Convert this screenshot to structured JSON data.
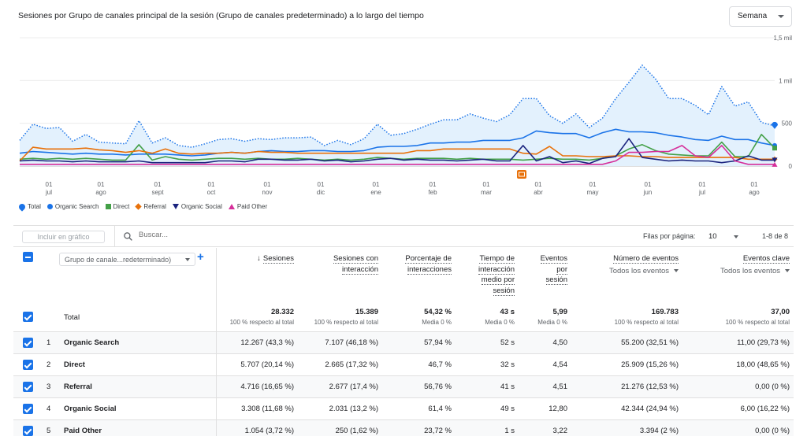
{
  "chart": {
    "title": "Sesiones por Grupo de canales principal de la sesión (Grupo de canales predeterminado) a lo largo del tiempo",
    "period_select": "Semana",
    "annotation_icon": "calendar-note-icon"
  },
  "chart_data": {
    "type": "line",
    "y_ticks": [
      "1,5 mil",
      "1 mil",
      "500",
      "0"
    ],
    "ylim": [
      0,
      1500
    ],
    "x_ticks": [
      {
        "day": "01",
        "month": "jul"
      },
      {
        "day": "01",
        "month": "ago"
      },
      {
        "day": "01",
        "month": "sept"
      },
      {
        "day": "01",
        "month": "oct"
      },
      {
        "day": "01",
        "month": "nov"
      },
      {
        "day": "01",
        "month": "dic"
      },
      {
        "day": "01",
        "month": "ene"
      },
      {
        "day": "01",
        "month": "feb"
      },
      {
        "day": "01",
        "month": "mar"
      },
      {
        "day": "01",
        "month": "abr"
      },
      {
        "day": "01",
        "month": "may"
      },
      {
        "day": "01",
        "month": "jun"
      },
      {
        "day": "01",
        "month": "jul"
      },
      {
        "day": "01",
        "month": "ago"
      }
    ],
    "series": [
      {
        "name": "Total",
        "color": "#1a73e8",
        "style": "dotted",
        "fill": true,
        "values": [
          300,
          490,
          440,
          450,
          290,
          370,
          280,
          270,
          260,
          530,
          270,
          330,
          240,
          220,
          260,
          310,
          320,
          290,
          320,
          310,
          330,
          330,
          340,
          240,
          300,
          250,
          320,
          490,
          360,
          380,
          430,
          490,
          540,
          540,
          610,
          560,
          520,
          600,
          790,
          790,
          590,
          500,
          610,
          450,
          560,
          790,
          980,
          1180,
          1020,
          790,
          790,
          710,
          600,
          930,
          700,
          750,
          510,
          470
        ]
      },
      {
        "name": "Organic Search",
        "color": "#1a73e8",
        "style": "solid",
        "values": [
          150,
          170,
          160,
          150,
          140,
          150,
          140,
          140,
          130,
          140,
          140,
          140,
          130,
          120,
          130,
          150,
          160,
          150,
          170,
          180,
          170,
          170,
          180,
          180,
          170,
          170,
          180,
          220,
          230,
          230,
          240,
          270,
          270,
          280,
          280,
          300,
          300,
          300,
          330,
          410,
          390,
          380,
          380,
          330,
          390,
          430,
          400,
          400,
          390,
          360,
          340,
          310,
          300,
          350,
          310,
          310,
          270,
          240
        ]
      },
      {
        "name": "Direct",
        "color": "#43a047",
        "style": "solid",
        "values": [
          80,
          90,
          80,
          90,
          80,
          90,
          80,
          70,
          70,
          250,
          70,
          110,
          80,
          70,
          80,
          90,
          90,
          80,
          90,
          80,
          80,
          90,
          80,
          70,
          80,
          70,
          80,
          100,
          90,
          80,
          90,
          90,
          90,
          80,
          90,
          80,
          80,
          80,
          70,
          80,
          90,
          80,
          80,
          70,
          90,
          120,
          200,
          250,
          180,
          140,
          130,
          120,
          120,
          280,
          110,
          110,
          370,
          210
        ]
      },
      {
        "name": "Referral",
        "color": "#e8710a",
        "style": "solid",
        "values": [
          60,
          220,
          200,
          200,
          200,
          210,
          190,
          180,
          160,
          180,
          150,
          200,
          150,
          140,
          150,
          150,
          160,
          150,
          170,
          160,
          160,
          150,
          150,
          150,
          150,
          150,
          150,
          150,
          150,
          150,
          180,
          180,
          200,
          200,
          200,
          200,
          200,
          200,
          150,
          140,
          230,
          120,
          120,
          110,
          110,
          120,
          120,
          110,
          110,
          100,
          100,
          100,
          100,
          100,
          100,
          80,
          80,
          80
        ]
      },
      {
        "name": "Organic Social",
        "color": "#1a237e",
        "style": "solid",
        "values": [
          60,
          70,
          60,
          60,
          50,
          60,
          50,
          50,
          50,
          60,
          40,
          40,
          40,
          40,
          40,
          60,
          60,
          50,
          80,
          80,
          70,
          70,
          80,
          60,
          70,
          50,
          60,
          80,
          90,
          70,
          80,
          70,
          70,
          60,
          70,
          80,
          60,
          60,
          240,
          60,
          110,
          40,
          60,
          30,
          90,
          110,
          320,
          100,
          80,
          60,
          70,
          60,
          60,
          40,
          60,
          120,
          70,
          70
        ]
      },
      {
        "name": "Paid Other",
        "color": "#d62f9a",
        "style": "solid",
        "values": [
          20,
          20,
          20,
          20,
          20,
          20,
          20,
          20,
          20,
          20,
          20,
          20,
          20,
          20,
          20,
          20,
          20,
          20,
          20,
          20,
          20,
          20,
          20,
          20,
          20,
          20,
          20,
          20,
          20,
          20,
          20,
          20,
          20,
          20,
          20,
          20,
          20,
          20,
          20,
          20,
          20,
          20,
          20,
          20,
          20,
          60,
          160,
          160,
          170,
          170,
          240,
          120,
          100,
          240,
          60,
          20,
          20,
          20
        ]
      }
    ]
  },
  "legend": [
    {
      "label": "Total",
      "color": "#1a73e8",
      "symbol": "pin"
    },
    {
      "label": "Organic Search",
      "color": "#1a73e8",
      "symbol": "dot"
    },
    {
      "label": "Direct",
      "color": "#43a047",
      "symbol": "square"
    },
    {
      "label": "Referral",
      "color": "#e8710a",
      "symbol": "diamond"
    },
    {
      "label": "Organic Social",
      "color": "#1a237e",
      "symbol": "triangle-down"
    },
    {
      "label": "Paid Other",
      "color": "#d62f9a",
      "symbol": "triangle-up"
    }
  ],
  "toolbar": {
    "include_label": "Incluir en gráfico",
    "search_placeholder": "Buscar...",
    "rows_label": "Filas por página:",
    "rows_value": "10",
    "pagination": "1-8 de 8"
  },
  "table": {
    "dimension_select": "Grupo de canale...redeterminado)",
    "columns": [
      {
        "lines": [
          "Sesiones"
        ],
        "sorted": true
      },
      {
        "lines": [
          "Sesiones con",
          "interacción"
        ]
      },
      {
        "lines": [
          "Porcentaje de",
          "interacciones"
        ]
      },
      {
        "lines": [
          "Tiempo de",
          "interacción",
          "medio por",
          "sesión"
        ]
      },
      {
        "lines": [
          "Eventos",
          "por",
          "sesión"
        ]
      },
      {
        "lines": [
          "Número de eventos"
        ],
        "sub": "Todos los eventos"
      },
      {
        "lines": [
          "Eventos clave"
        ],
        "sub": "Todos los eventos"
      }
    ],
    "total": {
      "label": "Total",
      "values": [
        "28.332",
        "15.389",
        "54,32 %",
        "43 s",
        "5,99",
        "169.783",
        "37,00"
      ],
      "subs": [
        "100 % respecto al total",
        "100 % respecto al total",
        "Media 0 %",
        "Media 0 %",
        "Media 0 %",
        "100 % respecto al total",
        "100 % respecto al total"
      ]
    },
    "rows": [
      {
        "index": "1",
        "name": "Organic Search",
        "values": [
          "12.267 (43,3 %)",
          "7.107 (46,18 %)",
          "57,94 %",
          "52 s",
          "4,50",
          "55.200 (32,51 %)",
          "11,00 (29,73 %)"
        ]
      },
      {
        "index": "2",
        "name": "Direct",
        "values": [
          "5.707 (20,14 %)",
          "2.665 (17,32 %)",
          "46,7 %",
          "32 s",
          "4,54",
          "25.909 (15,26 %)",
          "18,00 (48,65 %)"
        ]
      },
      {
        "index": "3",
        "name": "Referral",
        "values": [
          "4.716 (16,65 %)",
          "2.677 (17,4 %)",
          "56,76 %",
          "41 s",
          "4,51",
          "21.276 (12,53 %)",
          "0,00 (0 %)"
        ]
      },
      {
        "index": "4",
        "name": "Organic Social",
        "values": [
          "3.308 (11,68 %)",
          "2.031 (13,2 %)",
          "61,4 %",
          "49 s",
          "12,80",
          "42.344 (24,94 %)",
          "6,00 (16,22 %)"
        ]
      },
      {
        "index": "5",
        "name": "Paid Other",
        "values": [
          "1.054 (3,72 %)",
          "250 (1,62 %)",
          "23,72 %",
          "1 s",
          "3,22",
          "3.394 (2 %)",
          "0,00 (0 %)"
        ]
      }
    ]
  }
}
